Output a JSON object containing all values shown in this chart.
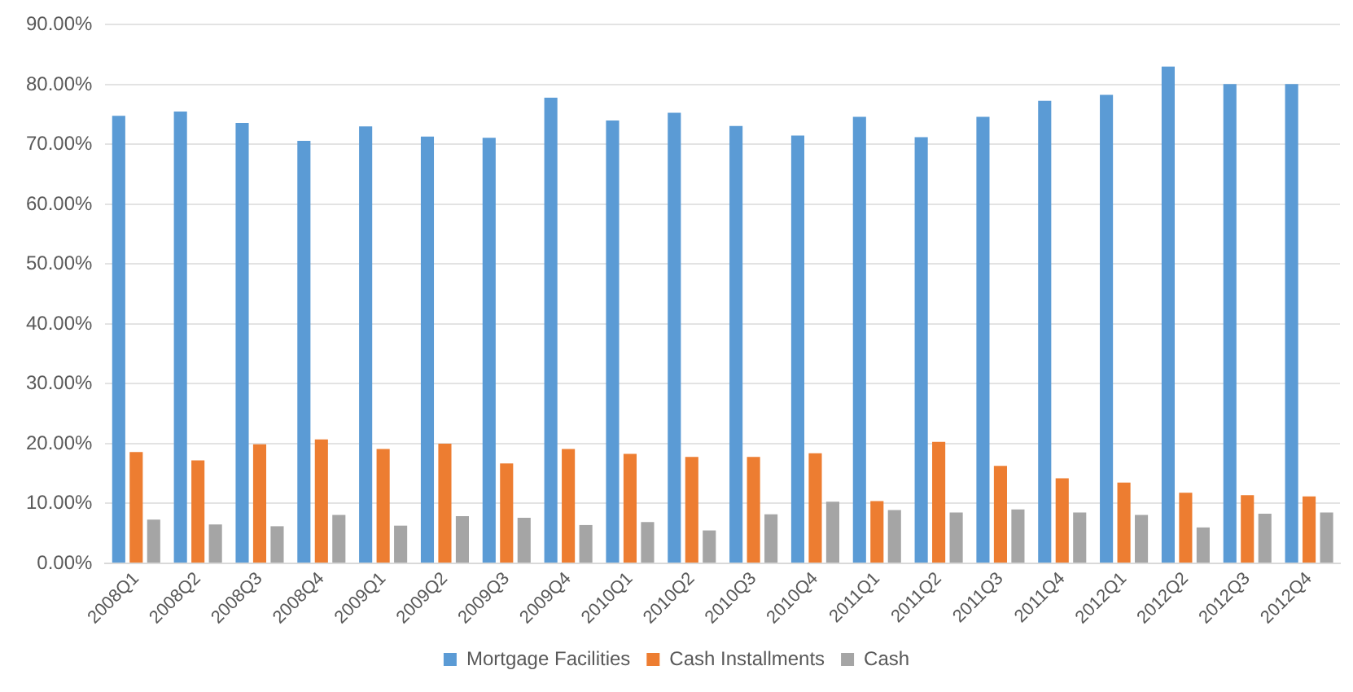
{
  "chart_data": {
    "type": "bar",
    "categories": [
      "2008Q1",
      "2008Q2",
      "2008Q3",
      "2008Q4",
      "2009Q1",
      "2009Q2",
      "2009Q3",
      "2009Q4",
      "2010Q1",
      "2010Q2",
      "2010Q3",
      "2010Q4",
      "2011Q1",
      "2011Q2",
      "2011Q3",
      "2011Q4",
      "2012Q1",
      "2012Q2",
      "2012Q3",
      "2012Q4"
    ],
    "series": [
      {
        "name": "Mortgage Facilities",
        "color": "#5b9bd5",
        "values": [
          74.8,
          75.5,
          73.6,
          70.6,
          73.0,
          71.3,
          71.1,
          77.8,
          74.0,
          75.3,
          73.1,
          71.5,
          74.6,
          71.2,
          74.6,
          77.3,
          78.3,
          83.0,
          80.1,
          80.1
        ]
      },
      {
        "name": "Cash Installments",
        "color": "#ed7d31",
        "values": [
          18.6,
          17.2,
          19.9,
          20.7,
          19.1,
          20.0,
          16.7,
          19.1,
          18.3,
          17.8,
          17.8,
          18.4,
          10.4,
          20.3,
          16.3,
          14.2,
          13.5,
          11.8,
          11.4,
          11.2
        ]
      },
      {
        "name": "Cash",
        "color": "#a5a5a5",
        "values": [
          7.3,
          6.5,
          6.2,
          8.1,
          6.3,
          7.9,
          7.6,
          6.4,
          6.9,
          5.5,
          8.2,
          10.3,
          8.9,
          8.5,
          9.0,
          8.5,
          8.1,
          6.0,
          8.3,
          8.5
        ]
      }
    ],
    "ylim": [
      0,
      90
    ],
    "yticks": [
      {
        "value": 0,
        "label": "0.00%"
      },
      {
        "value": 10,
        "label": "10.00%"
      },
      {
        "value": 20,
        "label": "20.00%"
      },
      {
        "value": 30,
        "label": "30.00%"
      },
      {
        "value": 40,
        "label": "40.00%"
      },
      {
        "value": 50,
        "label": "50.00%"
      },
      {
        "value": 60,
        "label": "60.00%"
      },
      {
        "value": 70,
        "label": "70.00%"
      },
      {
        "value": 80,
        "label": "80.00%"
      },
      {
        "value": 90,
        "label": "90.00%"
      }
    ],
    "grid": "y",
    "legend": "bottom"
  }
}
